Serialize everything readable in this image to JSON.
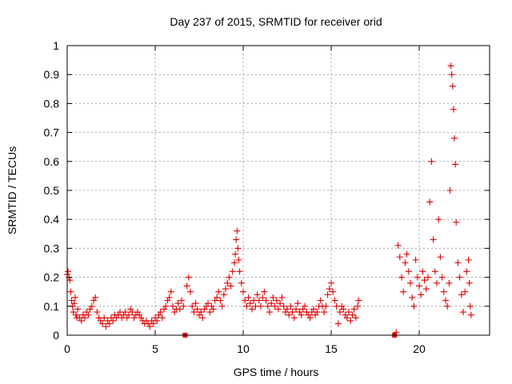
{
  "chart_data": {
    "type": "scatter",
    "title": "Day 237 of 2015, SRMTID for receiver orid",
    "xlabel": "GPS time / hours",
    "ylabel": "SRMTID / TECUs",
    "xlim": [
      0,
      24
    ],
    "ylim": [
      0,
      1
    ],
    "x_ticks": [
      0,
      5,
      10,
      15,
      20
    ],
    "x_tick_labels": [
      "0",
      "5",
      "10",
      "15",
      "20"
    ],
    "y_ticks": [
      0,
      0.1,
      0.2,
      0.3,
      0.4,
      0.5,
      0.6,
      0.7,
      0.8,
      0.9,
      1
    ],
    "y_tick_labels": [
      "0",
      "0.1",
      "0.2",
      "0.3",
      "0.4",
      "0.5",
      "0.6",
      "0.7",
      "0.8",
      "0.9",
      "1"
    ],
    "grid": true,
    "marker": "+",
    "color": "#e00000",
    "series": [
      {
        "name": "SRMTID",
        "points": [
          [
            0.0,
            0.21
          ],
          [
            0.05,
            0.22
          ],
          [
            0.1,
            0.2
          ],
          [
            0.15,
            0.19
          ],
          [
            0.2,
            0.15
          ],
          [
            0.25,
            0.12
          ],
          [
            0.3,
            0.1
          ],
          [
            0.35,
            0.08
          ],
          [
            0.4,
            0.11
          ],
          [
            0.45,
            0.13
          ],
          [
            0.5,
            0.07
          ],
          [
            0.55,
            0.06
          ],
          [
            0.6,
            0.09
          ],
          [
            0.7,
            0.06
          ],
          [
            0.8,
            0.05
          ],
          [
            0.9,
            0.07
          ],
          [
            1.0,
            0.06
          ],
          [
            1.1,
            0.08
          ],
          [
            1.2,
            0.07
          ],
          [
            1.3,
            0.09
          ],
          [
            1.4,
            0.1
          ],
          [
            1.5,
            0.12
          ],
          [
            1.6,
            0.13
          ],
          [
            1.7,
            0.08
          ],
          [
            1.8,
            0.06
          ],
          [
            1.9,
            0.05
          ],
          [
            2.0,
            0.04
          ],
          [
            2.1,
            0.06
          ],
          [
            2.2,
            0.03
          ],
          [
            2.3,
            0.05
          ],
          [
            2.4,
            0.04
          ],
          [
            2.5,
            0.06
          ],
          [
            2.6,
            0.05
          ],
          [
            2.7,
            0.07
          ],
          [
            2.8,
            0.06
          ],
          [
            2.9,
            0.07
          ],
          [
            3.0,
            0.08
          ],
          [
            3.1,
            0.06
          ],
          [
            3.2,
            0.07
          ],
          [
            3.3,
            0.08
          ],
          [
            3.4,
            0.06
          ],
          [
            3.5,
            0.07
          ],
          [
            3.6,
            0.09
          ],
          [
            3.7,
            0.08
          ],
          [
            3.8,
            0.06
          ],
          [
            3.9,
            0.07
          ],
          [
            4.0,
            0.08
          ],
          [
            4.1,
            0.07
          ],
          [
            4.2,
            0.06
          ],
          [
            4.3,
            0.05
          ],
          [
            4.4,
            0.04
          ],
          [
            4.5,
            0.05
          ],
          [
            4.6,
            0.04
          ],
          [
            4.7,
            0.03
          ],
          [
            4.8,
            0.05
          ],
          [
            4.9,
            0.04
          ],
          [
            5.0,
            0.06
          ],
          [
            5.1,
            0.05
          ],
          [
            5.2,
            0.07
          ],
          [
            5.3,
            0.08
          ],
          [
            5.4,
            0.06
          ],
          [
            5.5,
            0.09
          ],
          [
            5.6,
            0.1
          ],
          [
            5.7,
            0.12
          ],
          [
            5.8,
            0.13
          ],
          [
            5.9,
            0.15
          ],
          [
            6.0,
            0.1
          ],
          [
            6.1,
            0.08
          ],
          [
            6.2,
            0.09
          ],
          [
            6.3,
            0.11
          ],
          [
            6.4,
            0.09
          ],
          [
            6.5,
            0.12
          ],
          [
            6.6,
            0.1
          ],
          [
            6.7,
            0.0
          ],
          [
            6.8,
            0.17
          ],
          [
            6.9,
            0.2
          ],
          [
            7.0,
            0.15
          ],
          [
            7.1,
            0.1
          ],
          [
            7.2,
            0.08
          ],
          [
            7.3,
            0.11
          ],
          [
            7.4,
            0.09
          ],
          [
            7.5,
            0.07
          ],
          [
            7.6,
            0.08
          ],
          [
            7.7,
            0.06
          ],
          [
            7.8,
            0.09
          ],
          [
            7.9,
            0.1
          ],
          [
            8.0,
            0.11
          ],
          [
            8.1,
            0.08
          ],
          [
            8.2,
            0.1
          ],
          [
            8.3,
            0.09
          ],
          [
            8.4,
            0.12
          ],
          [
            8.5,
            0.13
          ],
          [
            8.6,
            0.15
          ],
          [
            8.7,
            0.12
          ],
          [
            8.8,
            0.1
          ],
          [
            8.9,
            0.14
          ],
          [
            9.0,
            0.16
          ],
          [
            9.1,
            0.18
          ],
          [
            9.2,
            0.2
          ],
          [
            9.3,
            0.17
          ],
          [
            9.4,
            0.22
          ],
          [
            9.5,
            0.25
          ],
          [
            9.55,
            0.28
          ],
          [
            9.6,
            0.33
          ],
          [
            9.65,
            0.36
          ],
          [
            9.7,
            0.3
          ],
          [
            9.75,
            0.26
          ],
          [
            9.8,
            0.22
          ],
          [
            9.9,
            0.18
          ],
          [
            10.0,
            0.15
          ],
          [
            10.1,
            0.12
          ],
          [
            10.2,
            0.1
          ],
          [
            10.3,
            0.13
          ],
          [
            10.4,
            0.11
          ],
          [
            10.5,
            0.09
          ],
          [
            10.6,
            0.12
          ],
          [
            10.7,
            0.1
          ],
          [
            10.8,
            0.14
          ],
          [
            10.9,
            0.12
          ],
          [
            11.0,
            0.1
          ],
          [
            11.1,
            0.13
          ],
          [
            11.2,
            0.15
          ],
          [
            11.3,
            0.12
          ],
          [
            11.4,
            0.1
          ],
          [
            11.5,
            0.08
          ],
          [
            11.6,
            0.11
          ],
          [
            11.7,
            0.13
          ],
          [
            11.8,
            0.1
          ],
          [
            11.9,
            0.12
          ],
          [
            12.0,
            0.09
          ],
          [
            12.1,
            0.11
          ],
          [
            12.2,
            0.13
          ],
          [
            12.3,
            0.1
          ],
          [
            12.4,
            0.08
          ],
          [
            12.5,
            0.09
          ],
          [
            12.6,
            0.07
          ],
          [
            12.7,
            0.1
          ],
          [
            12.8,
            0.08
          ],
          [
            12.9,
            0.06
          ],
          [
            13.0,
            0.09
          ],
          [
            13.1,
            0.11
          ],
          [
            13.2,
            0.08
          ],
          [
            13.3,
            0.07
          ],
          [
            13.4,
            0.09
          ],
          [
            13.5,
            0.1
          ],
          [
            13.6,
            0.08
          ],
          [
            13.7,
            0.07
          ],
          [
            13.8,
            0.06
          ],
          [
            13.9,
            0.08
          ],
          [
            14.0,
            0.09
          ],
          [
            14.1,
            0.07
          ],
          [
            14.2,
            0.08
          ],
          [
            14.3,
            0.1
          ],
          [
            14.4,
            0.12
          ],
          [
            14.5,
            0.1
          ],
          [
            14.6,
            0.08
          ],
          [
            14.7,
            0.1
          ],
          [
            14.8,
            0.14
          ],
          [
            14.9,
            0.16
          ],
          [
            15.0,
            0.18
          ],
          [
            15.1,
            0.15
          ],
          [
            15.2,
            0.12
          ],
          [
            15.3,
            0.1
          ],
          [
            15.4,
            0.04
          ],
          [
            15.5,
            0.08
          ],
          [
            15.6,
            0.1
          ],
          [
            15.7,
            0.09
          ],
          [
            15.8,
            0.07
          ],
          [
            15.9,
            0.06
          ],
          [
            16.0,
            0.08
          ],
          [
            16.1,
            0.05
          ],
          [
            16.2,
            0.07
          ],
          [
            16.3,
            0.09
          ],
          [
            16.4,
            0.06
          ],
          [
            16.5,
            0.1
          ],
          [
            16.55,
            0.12
          ],
          [
            18.6,
            0.0
          ],
          [
            18.7,
            0.01
          ],
          [
            18.8,
            0.31
          ],
          [
            18.9,
            0.27
          ],
          [
            19.0,
            0.2
          ],
          [
            19.1,
            0.15
          ],
          [
            19.2,
            0.25
          ],
          [
            19.3,
            0.28
          ],
          [
            19.4,
            0.22
          ],
          [
            19.5,
            0.18
          ],
          [
            19.6,
            0.13
          ],
          [
            19.7,
            0.1
          ],
          [
            19.8,
            0.26
          ],
          [
            19.9,
            0.2
          ],
          [
            20.0,
            0.17
          ],
          [
            20.1,
            0.14
          ],
          [
            20.2,
            0.22
          ],
          [
            20.3,
            0.19
          ],
          [
            20.4,
            0.16
          ],
          [
            20.5,
            0.2
          ],
          [
            20.6,
            0.46
          ],
          [
            20.7,
            0.6
          ],
          [
            20.8,
            0.33
          ],
          [
            20.9,
            0.22
          ],
          [
            21.0,
            0.18
          ],
          [
            21.1,
            0.4
          ],
          [
            21.2,
            0.27
          ],
          [
            21.3,
            0.2
          ],
          [
            21.4,
            0.15
          ],
          [
            21.5,
            0.12
          ],
          [
            21.6,
            0.1
          ],
          [
            21.7,
            0.18
          ],
          [
            21.75,
            0.5
          ],
          [
            21.8,
            0.93
          ],
          [
            21.85,
            0.9
          ],
          [
            21.9,
            0.86
          ],
          [
            21.95,
            0.78
          ],
          [
            22.0,
            0.68
          ],
          [
            22.05,
            0.59
          ],
          [
            22.1,
            0.39
          ],
          [
            22.2,
            0.25
          ],
          [
            22.3,
            0.2
          ],
          [
            22.4,
            0.14
          ],
          [
            22.5,
            0.08
          ],
          [
            22.6,
            0.15
          ],
          [
            22.7,
            0.22
          ],
          [
            22.8,
            0.26
          ],
          [
            22.85,
            0.18
          ],
          [
            22.9,
            0.1
          ],
          [
            22.95,
            0.07
          ]
        ]
      }
    ]
  }
}
